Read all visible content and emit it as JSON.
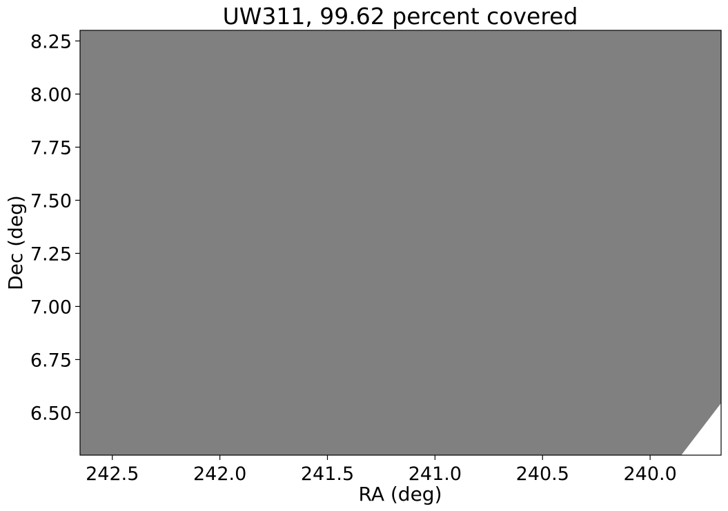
{
  "chart_data": {
    "type": "area",
    "title": "UW311, 99.62 percent covered",
    "xlabel": "RA (deg)",
    "ylabel": "Dec (deg)",
    "xlim": [
      242.65,
      239.67
    ],
    "ylim": [
      6.3,
      8.3
    ],
    "x_inverted": true,
    "xticks": [
      {
        "value": 242.5,
        "label": "242.5"
      },
      {
        "value": 242.0,
        "label": "242.0"
      },
      {
        "value": 241.5,
        "label": "241.5"
      },
      {
        "value": 241.0,
        "label": "241.0"
      },
      {
        "value": 240.5,
        "label": "240.5"
      },
      {
        "value": 240.0,
        "label": "240.0"
      }
    ],
    "yticks": [
      {
        "value": 6.5,
        "label": "6.50"
      },
      {
        "value": 6.75,
        "label": "6.75"
      },
      {
        "value": 7.0,
        "label": "7.00"
      },
      {
        "value": 7.25,
        "label": "7.25"
      },
      {
        "value": 7.5,
        "label": "7.50"
      },
      {
        "value": 7.75,
        "label": "7.75"
      },
      {
        "value": 8.0,
        "label": "8.00"
      },
      {
        "value": 8.25,
        "label": "8.25"
      }
    ],
    "grid": false,
    "coverage_percent": 99.62,
    "covered_region": {
      "polygon": [
        [
          242.65,
          8.3
        ],
        [
          239.67,
          8.3
        ],
        [
          239.67,
          6.545
        ],
        [
          239.855,
          6.3
        ],
        [
          242.65,
          6.3
        ]
      ]
    },
    "colors": {
      "covered": "#808080",
      "uncovered": "#ffffff",
      "axes": "#000000"
    }
  }
}
